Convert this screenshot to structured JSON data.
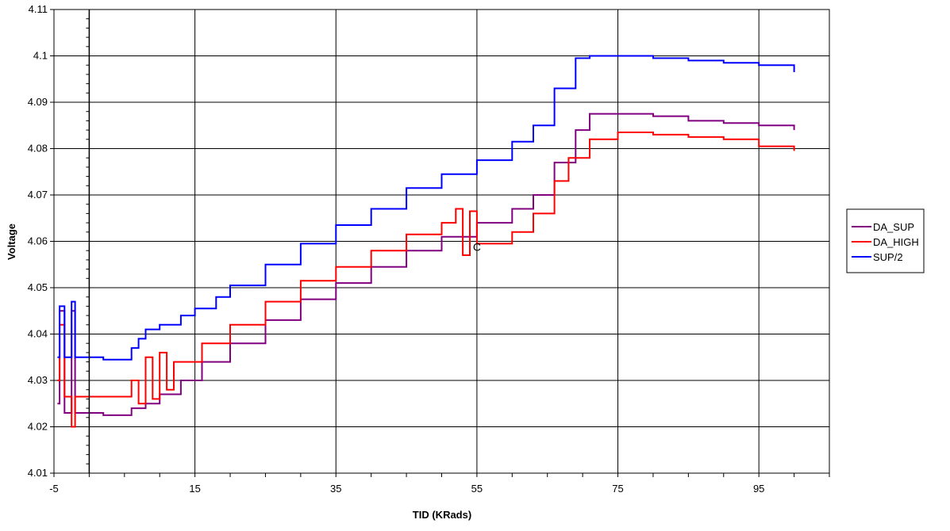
{
  "chart_data": {
    "type": "line",
    "title": "",
    "xlabel": "TID (KRads)",
    "ylabel": "Voltage",
    "xlim": [
      -5,
      105
    ],
    "ylim": [
      4.01,
      4.11
    ],
    "x_ticks": [
      -5,
      15,
      35,
      55,
      75,
      95
    ],
    "x_tick_labels": [
      "-5",
      "15",
      "35",
      "55",
      "75",
      "95"
    ],
    "y_ticks": [
      4.01,
      4.02,
      4.03,
      4.04,
      4.05,
      4.06,
      4.07,
      4.08,
      4.09,
      4.1,
      4.11
    ],
    "y_tick_labels": [
      "4.01",
      "4.02",
      "4.03",
      "4.04",
      "4.05",
      "4.06",
      "4.07",
      "4.08",
      "4.09",
      "4.1",
      "4.11"
    ],
    "x_gridlines": [
      15,
      35,
      55,
      75,
      95
    ],
    "grid": true,
    "legend_position": "right",
    "annotation": {
      "text": "C",
      "x": 55,
      "y": 4.0588
    },
    "series": [
      {
        "name": "DA_SUP",
        "color": "#800080",
        "x": [
          -4.5,
          -4.2,
          -3.5,
          -2.5,
          -2.0,
          0.0,
          2.0,
          5.0,
          6.0,
          8.0,
          10.0,
          13.0,
          16.0,
          20.0,
          25.0,
          30.0,
          35.0,
          40.0,
          45.0,
          50.0,
          55.0,
          60.0,
          63.0,
          66.0,
          69.0,
          71.0,
          75.0,
          80.0,
          85.0,
          90.0,
          95.0,
          100.0
        ],
        "y": [
          4.025,
          4.045,
          4.023,
          4.045,
          4.023,
          4.023,
          4.0225,
          4.0225,
          4.024,
          4.025,
          4.027,
          4.03,
          4.034,
          4.038,
          4.043,
          4.0475,
          4.051,
          4.0545,
          4.058,
          4.061,
          4.064,
          4.067,
          4.07,
          4.077,
          4.084,
          4.0875,
          4.0875,
          4.087,
          4.086,
          4.0855,
          4.085,
          4.084
        ]
      },
      {
        "name": "DA_HIGH",
        "color": "#ff0000",
        "x": [
          -4.5,
          -4.2,
          -3.5,
          -2.5,
          -2.0,
          0.0,
          2.0,
          5.0,
          6.0,
          7.0,
          8.0,
          9.0,
          10.0,
          11.0,
          12.0,
          13.0,
          16.0,
          20.0,
          25.0,
          30.0,
          35.0,
          40.0,
          45.0,
          50.0,
          52.0,
          53.0,
          54.0,
          55.0,
          60.0,
          63.0,
          66.0,
          68.0,
          71.0,
          75.0,
          80.0,
          85.0,
          90.0,
          95.0,
          100.0
        ],
        "y": [
          4.03,
          4.042,
          4.0265,
          4.02,
          4.0265,
          4.0265,
          4.0265,
          4.0265,
          4.03,
          4.025,
          4.035,
          4.026,
          4.036,
          4.028,
          4.034,
          4.034,
          4.038,
          4.042,
          4.047,
          4.0515,
          4.0545,
          4.058,
          4.0615,
          4.064,
          4.067,
          4.057,
          4.0665,
          4.0595,
          4.062,
          4.066,
          4.073,
          4.078,
          4.082,
          4.0835,
          4.083,
          4.0825,
          4.082,
          4.0805,
          4.0795
        ]
      },
      {
        "name": "SUP/2",
        "color": "#0000ff",
        "x": [
          -4.5,
          -4.2,
          -3.5,
          -2.5,
          -2.0,
          0.0,
          2.0,
          5.0,
          6.0,
          7.0,
          8.0,
          10.0,
          13.0,
          15.0,
          18.0,
          20.0,
          25.0,
          30.0,
          35.0,
          40.0,
          45.0,
          50.0,
          55.0,
          60.0,
          63.0,
          66.0,
          69.0,
          71.0,
          75.0,
          80.0,
          85.0,
          90.0,
          95.0,
          100.0
        ],
        "y": [
          4.035,
          4.046,
          4.035,
          4.047,
          4.035,
          4.035,
          4.0345,
          4.0345,
          4.037,
          4.039,
          4.041,
          4.042,
          4.044,
          4.0455,
          4.048,
          4.0505,
          4.055,
          4.0595,
          4.0635,
          4.067,
          4.0715,
          4.0745,
          4.0775,
          4.0815,
          4.085,
          4.093,
          4.0995,
          4.1,
          4.1,
          4.0995,
          4.099,
          4.0985,
          4.098,
          4.0965
        ]
      }
    ]
  }
}
